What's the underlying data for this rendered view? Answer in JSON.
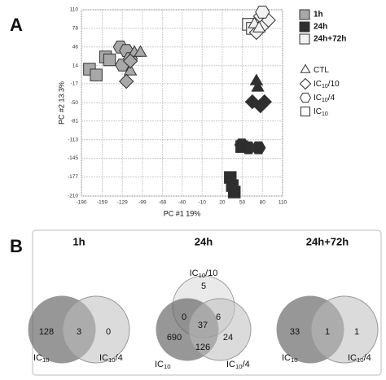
{
  "panel_labels": [
    "A",
    "B"
  ],
  "chart_data": [
    {
      "type": "scatter",
      "x_label": "PC #1   19%",
      "y_label": "PC #2 13.3%",
      "xlim": [
        -190,
        110
      ],
      "ylim": [
        -210,
        110
      ],
      "xticks": [
        -190,
        -159,
        -129,
        -99,
        -69,
        -40,
        -10,
        20,
        50,
        80,
        110
      ],
      "yticks": [
        110,
        78,
        46,
        14,
        -17,
        -50,
        -81,
        -113,
        -145,
        -177,
        -210
      ],
      "grid": true,
      "series": [
        {
          "name": "1h",
          "color": "#a8a8a8",
          "x": [
            -178,
            -168,
            -154,
            -148,
            -132,
            -123,
            -129,
            -117,
            -111,
            -102,
            -117,
            -123,
            -117
          ],
          "values": [
            8,
            -2,
            29,
            24,
            46,
            40,
            15,
            26,
            36,
            36,
            4,
            -13,
            22
          ],
          "markers": [
            "square",
            "square",
            "square",
            "square",
            "hexagon",
            "hexagon",
            "hexagon",
            "hexagon",
            "triangle",
            "triangle",
            "triangle",
            "diamond",
            "diamond"
          ]
        },
        {
          "name": "24h",
          "color": "#2e2e2e",
          "x": [
            71,
            73,
            65,
            77,
            83,
            49,
            59,
            74,
            49,
            32,
            35,
            38
          ],
          "values": [
            -13,
            -24,
            -48,
            -55,
            -48,
            -122,
            -127,
            -127,
            -125,
            -178,
            -192,
            -203
          ],
          "markers": [
            "triangle",
            "triangle",
            "diamond",
            "diamond",
            "diamond",
            "hexagon",
            "hexagon",
            "hexagon",
            "square",
            "square",
            "square",
            "square"
          ]
        },
        {
          "name": "24h+72h",
          "color": "#f2f2f2",
          "x": [
            59,
            65,
            77,
            83,
            71,
            89,
            68,
            75,
            80
          ],
          "values": [
            85,
            78,
            99,
            85,
            71,
            92,
            85,
            78,
            106
          ],
          "markers": [
            "square",
            "square",
            "diamond",
            "diamond",
            "diamond",
            "diamond",
            "triangle",
            "triangle",
            "hexagon"
          ]
        }
      ],
      "marker_legend": [
        {
          "marker": "triangle",
          "label": {
            "text": "CTL"
          }
        },
        {
          "marker": "diamond",
          "label": {
            "text": "IC",
            "sub": "10",
            "rest": "/10"
          }
        },
        {
          "marker": "hexagon",
          "label": {
            "text": "IC",
            "sub": "10",
            "rest": "/4"
          }
        },
        {
          "marker": "square",
          "label": {
            "text": "IC",
            "sub": "10"
          }
        }
      ]
    },
    {
      "type": "venn",
      "title": "1h",
      "sets": [
        {
          "text": "IC",
          "sub": "10"
        },
        {
          "text": "IC",
          "sub": "10",
          "rest": "/4"
        }
      ],
      "values": [
        128,
        3,
        0
      ]
    },
    {
      "type": "venn",
      "title": "24h",
      "sets": [
        {
          "text": "IC",
          "sub": "10",
          "rest": "/10"
        },
        {
          "text": "IC",
          "sub": "10"
        },
        {
          "text": "IC",
          "sub": "10",
          "rest": "/4"
        }
      ],
      "values": [
        5,
        0,
        6,
        37,
        690,
        126,
        24
      ]
    },
    {
      "type": "venn",
      "title": "24h+72h",
      "sets": [
        {
          "text": "IC",
          "sub": "10"
        },
        {
          "text": "IC",
          "sub": "10",
          "rest": "/4"
        }
      ],
      "values": [
        33,
        1,
        1
      ]
    }
  ]
}
